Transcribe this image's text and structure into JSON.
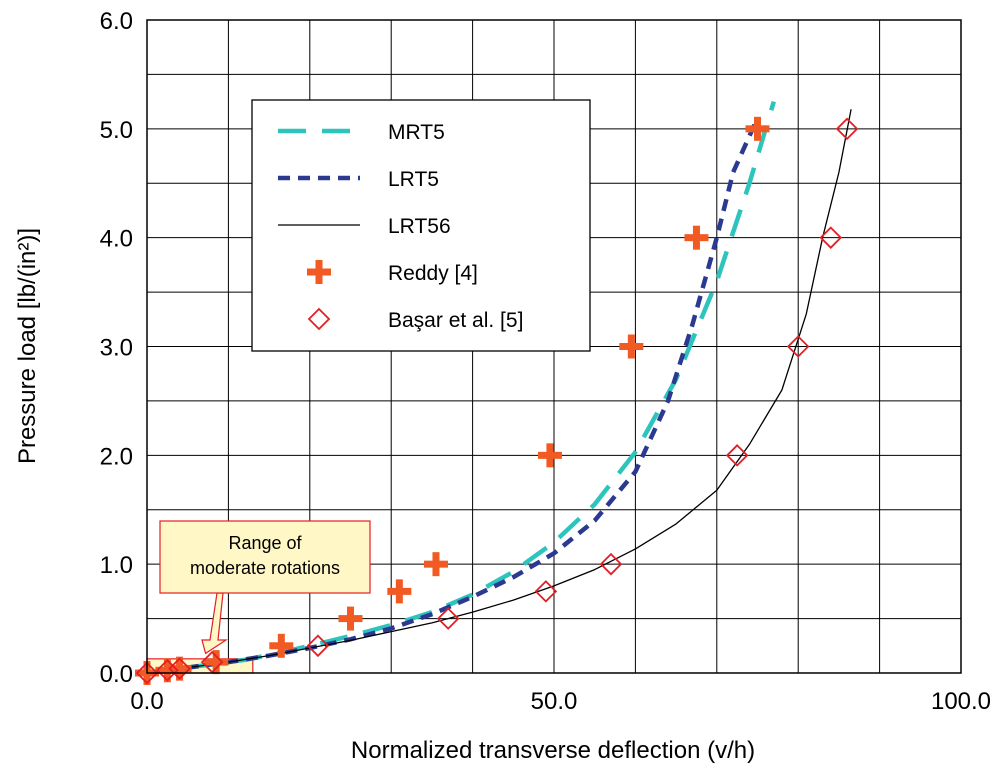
{
  "chart_data": {
    "type": "line",
    "title": "",
    "xlabel": "Normalized transverse deflection (v/h)",
    "ylabel": "Pressure load [lb/(in²)]",
    "xlim": [
      0,
      100
    ],
    "ylim": [
      0,
      6
    ],
    "x_ticks": [
      "0.0",
      "50.0",
      "100.0"
    ],
    "x_tick_values": [
      0,
      50,
      100
    ],
    "y_ticks": [
      "0.0",
      "1.0",
      "2.0",
      "3.0",
      "4.0",
      "5.0",
      "6.0"
    ],
    "y_tick_values": [
      0,
      1,
      2,
      3,
      4,
      5,
      6
    ],
    "x_grid_step": 10,
    "y_grid_step": 0.5,
    "grid": true,
    "legend_placement": "upper-left inside plot",
    "series": [
      {
        "name": "MRT5",
        "kind": "line",
        "style": "long-dash",
        "color": "#2EC4BE",
        "points": [
          [
            0,
            0
          ],
          [
            4,
            0.04
          ],
          [
            8,
            0.08
          ],
          [
            12,
            0.12
          ],
          [
            16,
            0.18
          ],
          [
            20,
            0.25
          ],
          [
            25,
            0.34
          ],
          [
            30,
            0.44
          ],
          [
            35,
            0.56
          ],
          [
            40,
            0.72
          ],
          [
            45,
            0.93
          ],
          [
            50,
            1.2
          ],
          [
            55,
            1.55
          ],
          [
            60,
            2.03
          ],
          [
            65,
            2.7
          ],
          [
            70,
            3.6
          ],
          [
            74,
            4.5
          ],
          [
            77,
            5.25
          ]
        ]
      },
      {
        "name": "LRT5",
        "kind": "line",
        "style": "short-dash",
        "color": "#2B3990",
        "points": [
          [
            0,
            0
          ],
          [
            5,
            0.05
          ],
          [
            10,
            0.1
          ],
          [
            15,
            0.16
          ],
          [
            20,
            0.23
          ],
          [
            25,
            0.31
          ],
          [
            30,
            0.41
          ],
          [
            35,
            0.54
          ],
          [
            40,
            0.7
          ],
          [
            45,
            0.88
          ],
          [
            50,
            1.1
          ],
          [
            55,
            1.4
          ],
          [
            60,
            1.85
          ],
          [
            64,
            2.5
          ],
          [
            67,
            3.2
          ],
          [
            70,
            4.0
          ],
          [
            72,
            4.6
          ],
          [
            75,
            5.1
          ]
        ]
      },
      {
        "name": "LRT56",
        "kind": "line",
        "style": "solid-thin",
        "color": "#000000",
        "points": [
          [
            0,
            0
          ],
          [
            5,
            0.05
          ],
          [
            10,
            0.1
          ],
          [
            15,
            0.16
          ],
          [
            20,
            0.23
          ],
          [
            25,
            0.3
          ],
          [
            30,
            0.38
          ],
          [
            35,
            0.46
          ],
          [
            40,
            0.56
          ],
          [
            45,
            0.67
          ],
          [
            50,
            0.8
          ],
          [
            55,
            0.95
          ],
          [
            60,
            1.14
          ],
          [
            65,
            1.37
          ],
          [
            70,
            1.68
          ],
          [
            74,
            2.1
          ],
          [
            78,
            2.6
          ],
          [
            81,
            3.3
          ],
          [
            83,
            4.0
          ],
          [
            85,
            4.6
          ],
          [
            86.5,
            5.18
          ]
        ]
      },
      {
        "name": "Reddy [4]",
        "kind": "marker",
        "marker": "plus",
        "color": "#F15A22",
        "points": [
          [
            0,
            0
          ],
          [
            2.5,
            0.025
          ],
          [
            4,
            0.04
          ],
          [
            8.5,
            0.1
          ],
          [
            16.5,
            0.25
          ],
          [
            25,
            0.5
          ],
          [
            31,
            0.75
          ],
          [
            35.5,
            1.0
          ],
          [
            49.5,
            2.0
          ],
          [
            59.5,
            3.0
          ],
          [
            67.5,
            4.0
          ],
          [
            75,
            5.0
          ]
        ]
      },
      {
        "name": "Başar et al. [5]",
        "kind": "marker",
        "marker": "diamond",
        "color": "#E31E24",
        "points": [
          [
            0,
            0
          ],
          [
            2.5,
            0.025
          ],
          [
            4,
            0.04
          ],
          [
            8,
            0.1
          ],
          [
            21,
            0.25
          ],
          [
            37,
            0.5
          ],
          [
            49,
            0.75
          ],
          [
            57,
            1.0
          ],
          [
            72.5,
            2.0
          ],
          [
            80,
            3.0
          ],
          [
            84,
            4.0
          ],
          [
            86,
            5.0
          ]
        ]
      }
    ],
    "annotation": {
      "text_lines": [
        "Range of",
        "moderate rotations"
      ],
      "box_fill": "#FFF8C6",
      "box_stroke": "#E31E24",
      "region_x": [
        0,
        13
      ],
      "region_y": [
        0,
        0.13
      ]
    }
  }
}
